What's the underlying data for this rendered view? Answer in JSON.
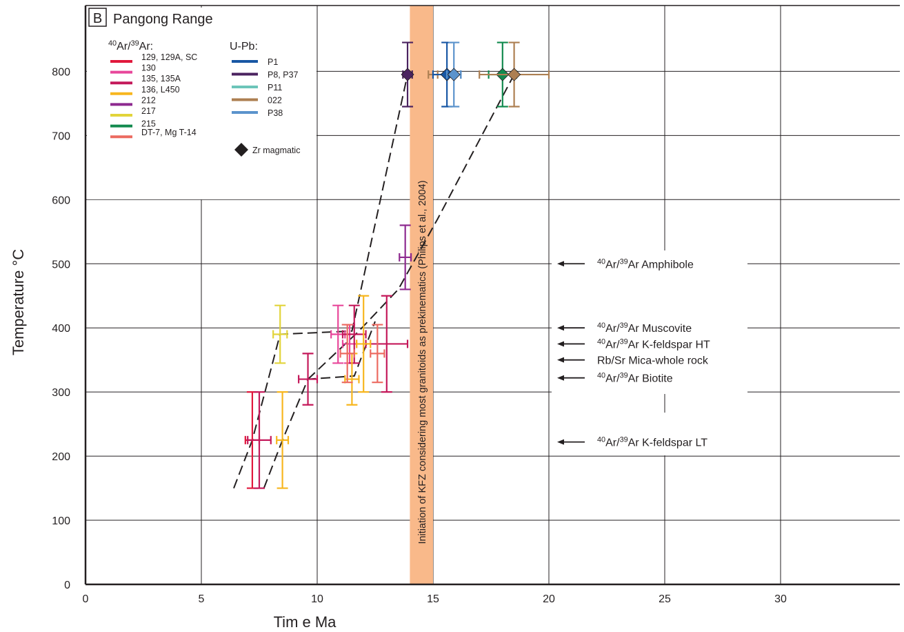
{
  "chart_data": {
    "type": "scatter",
    "panel_label": "B",
    "title": "Pangong Range",
    "xlabel": "Tim e Ma",
    "ylabel": "Temperature °C",
    "xlim": [
      0,
      35
    ],
    "ylim": [
      0,
      850
    ],
    "x_ticks": [
      "0",
      "5",
      "10",
      "15",
      "20",
      "25",
      "30"
    ],
    "y_ticks": [
      "0",
      "100",
      "200",
      "300",
      "400",
      "500",
      "600",
      "700",
      "800"
    ],
    "grid": true,
    "legend_placement": "top-left",
    "legend": {
      "ar_header_sup1": "40",
      "ar_header_mid": "Ar/",
      "ar_header_sup2": "39",
      "ar_header_end": "Ar:",
      "ar_entries": [
        {
          "label": "129, 129A, SC",
          "color": "#e0183c"
        },
        {
          "label": "130",
          "color": "#e8479a"
        },
        {
          "label": "135, 135A",
          "color": "#c4195a"
        },
        {
          "label": "136, L450",
          "color": "#f7b61e"
        },
        {
          "label": "212",
          "color": "#8e2a8f"
        },
        {
          "label": "217",
          "color": "#e2d43a"
        },
        {
          "label": "215",
          "color": "#128a4e"
        },
        {
          "label": "DT-7, Mg T-14",
          "color": "#ec6a60"
        }
      ],
      "upb_header": "U-Pb:",
      "upb_entries": [
        {
          "label": "P1",
          "color": "#1857a4"
        },
        {
          "label": "P8, P37",
          "color": "#4b2360"
        },
        {
          "label": "P11",
          "color": "#6cc5b9"
        },
        {
          "label": "022",
          "color": "#ad7f52"
        },
        {
          "label": "P38",
          "color": "#5b93cc"
        }
      ],
      "zr_label": "Zr magmatic"
    },
    "kfz_band": {
      "x_range": [
        14,
        15
      ],
      "color": "#f9b98a",
      "label": "Initiation of KFZ considering most granitoids as prekinematics (Philips et al., 2004)"
    },
    "series": [
      {
        "name": "129, 129A, SC",
        "color": "#e0183c",
        "points": [
          {
            "x": 7.2,
            "y": 225,
            "xerr": 0.3,
            "yerr": 75
          }
        ]
      },
      {
        "name": "130",
        "color": "#e8479a",
        "points": [
          {
            "x": 10.9,
            "y": 390,
            "xerr": 0.3,
            "yerr": 45
          },
          {
            "x": 11.4,
            "y": 375,
            "xerr": 0.3,
            "yerr": 30
          }
        ]
      },
      {
        "name": "135, 135A",
        "color": "#c4195a",
        "points": [
          {
            "x": 7.5,
            "y": 225,
            "xerr": 0.5,
            "yerr": 75
          },
          {
            "x": 9.6,
            "y": 320,
            "xerr": 0.4,
            "yerr": 40
          },
          {
            "x": 11.6,
            "y": 390,
            "xerr": 0.5,
            "yerr": 45
          },
          {
            "x": 13.0,
            "y": 375,
            "xerr": 0.9,
            "yerr": 75
          }
        ]
      },
      {
        "name": "136, L450",
        "color": "#f7b61e",
        "points": [
          {
            "x": 8.5,
            "y": 225,
            "xerr": 0.25,
            "yerr": 75
          },
          {
            "x": 11.5,
            "y": 320,
            "xerr": 0.3,
            "yerr": 40
          },
          {
            "x": 12.0,
            "y": 375,
            "xerr": 0.3,
            "yerr": 75
          }
        ]
      },
      {
        "name": "212",
        "color": "#8e2a8f",
        "points": [
          {
            "x": 13.8,
            "y": 510,
            "xerr": 0.25,
            "yerr": 50
          }
        ]
      },
      {
        "name": "217",
        "color": "#e2d43a",
        "points": [
          {
            "x": 8.4,
            "y": 390,
            "xerr": 0.3,
            "yerr": 45
          }
        ]
      },
      {
        "name": "DT-7, Mg T-14",
        "color": "#ec6a60",
        "points": [
          {
            "x": 11.3,
            "y": 360,
            "xerr": 0.3,
            "yerr": 45
          },
          {
            "x": 12.6,
            "y": 360,
            "xerr": 0.3,
            "yerr": 45
          }
        ]
      },
      {
        "name": "P8, P37",
        "color": "#4b2360",
        "zr": true,
        "points": [
          {
            "x": 13.9,
            "y": 795,
            "xerr": 0.2,
            "yerr": 50
          }
        ]
      },
      {
        "name": "022",
        "color": "#ad7f52",
        "zr": false,
        "points": [
          {
            "x": 15.0,
            "y": 795,
            "xerr": 0.2,
            "yerr": 0
          }
        ]
      },
      {
        "name": "P1",
        "color": "#1857a4",
        "zr": true,
        "points": [
          {
            "x": 15.6,
            "y": 795,
            "xerr": 0.6,
            "yerr": 50
          }
        ]
      },
      {
        "name": "P38",
        "color": "#5b93cc",
        "zr": true,
        "points": [
          {
            "x": 15.9,
            "y": 795,
            "xerr": 0.3,
            "yerr": 50
          }
        ]
      },
      {
        "name": "215",
        "color": "#128a4e",
        "zr": true,
        "points": [
          {
            "x": 18.0,
            "y": 795,
            "xerr": 0.6,
            "yerr": 50
          }
        ]
      },
      {
        "name": "022",
        "color": "#ad7f52",
        "zr": true,
        "points": [
          {
            "x": 18.5,
            "y": 795,
            "xerr": 1.5,
            "yerr": 50
          }
        ]
      }
    ],
    "path_lines": [
      [
        [
          6.4,
          150
        ],
        [
          7.2,
          225
        ],
        [
          8.4,
          390
        ],
        [
          11.5,
          395
        ],
        [
          13.9,
          795
        ]
      ],
      [
        [
          7.7,
          150
        ],
        [
          8.5,
          225
        ],
        [
          9.6,
          320
        ],
        [
          11.6,
          325
        ],
        [
          12.5,
          410
        ]
      ],
      [
        [
          9.6,
          320
        ],
        [
          11.8,
          395
        ],
        [
          13.5,
          460
        ],
        [
          15.2,
          570
        ],
        [
          18.5,
          795
        ]
      ]
    ],
    "annotations": [
      {
        "y": 500,
        "sup1": "40",
        "mid": "Ar/",
        "sup2": "39",
        "text": "Ar Amphibole"
      },
      {
        "y": 400,
        "sup1": "40",
        "mid": "Ar/",
        "sup2": "39",
        "text": "Ar Muscovite"
      },
      {
        "y": 375,
        "sup1": "40",
        "mid": "Ar/",
        "sup2": "39",
        "text": "Ar K-feldspar HT"
      },
      {
        "y": 350,
        "sup1": "",
        "mid": "",
        "sup2": "",
        "text": "Rb/Sr Mica-whole rock"
      },
      {
        "y": 322,
        "sup1": "40",
        "mid": "Ar/",
        "sup2": "39",
        "text": "Ar Biotite"
      },
      {
        "y": 222,
        "sup1": "40",
        "mid": "Ar/",
        "sup2": "39",
        "text": "Ar K-feldspar LT"
      }
    ]
  }
}
